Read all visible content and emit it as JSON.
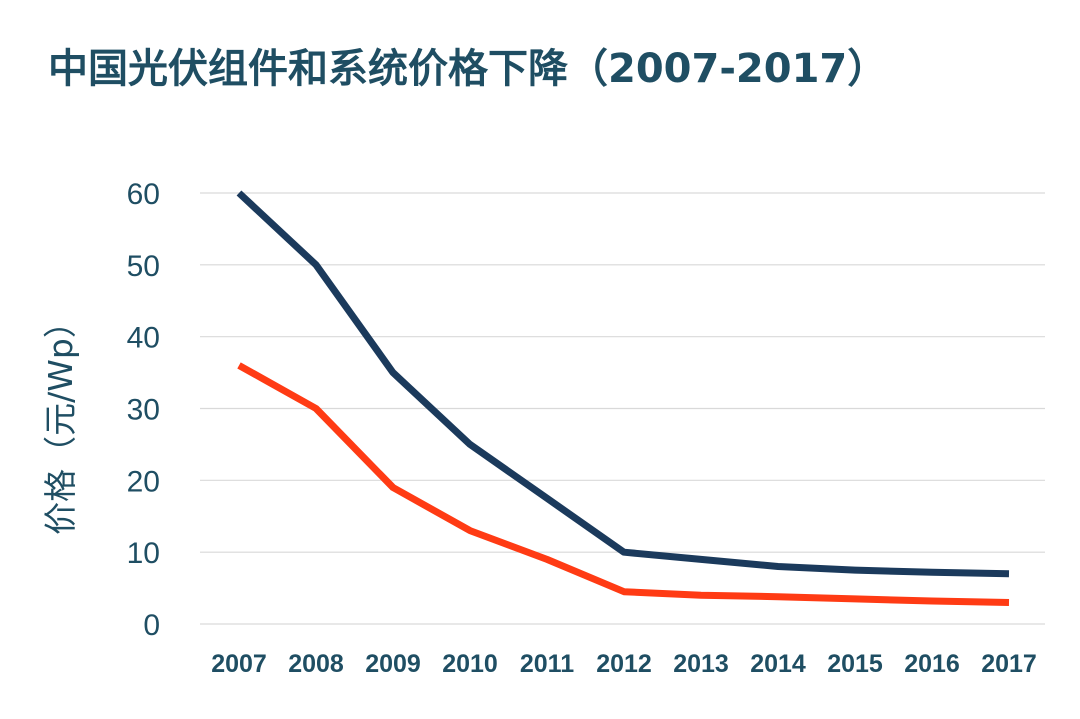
{
  "title": "中国光伏组件和系统价格下降（2007-2017）",
  "colors": {
    "title": "#1f4e63",
    "series_system": "#1b3a5c",
    "series_module": "#ff3b14",
    "grid": "#d9d9d9"
  },
  "chart_data": {
    "type": "line",
    "title": "中国光伏组件和系统价格下降（2007-2017）",
    "xlabel": "",
    "ylabel": "价格（元/Wp）",
    "ylim": [
      0,
      60
    ],
    "yticks": [
      0,
      10,
      20,
      30,
      40,
      50,
      60
    ],
    "grid": true,
    "legend": "none",
    "categories": [
      "2007",
      "2008",
      "2009",
      "2010",
      "2011",
      "2012",
      "2013",
      "2014",
      "2015",
      "2016",
      "2017"
    ],
    "series": [
      {
        "color": "#1b3a5c",
        "values": [
          60,
          50,
          35,
          25,
          17.5,
          10,
          9,
          8,
          7.5,
          7.2,
          7
        ]
      },
      {
        "color": "#ff3b14",
        "values": [
          36,
          30,
          19,
          13,
          9,
          4.5,
          4,
          3.8,
          3.5,
          3.2,
          3
        ]
      }
    ]
  }
}
